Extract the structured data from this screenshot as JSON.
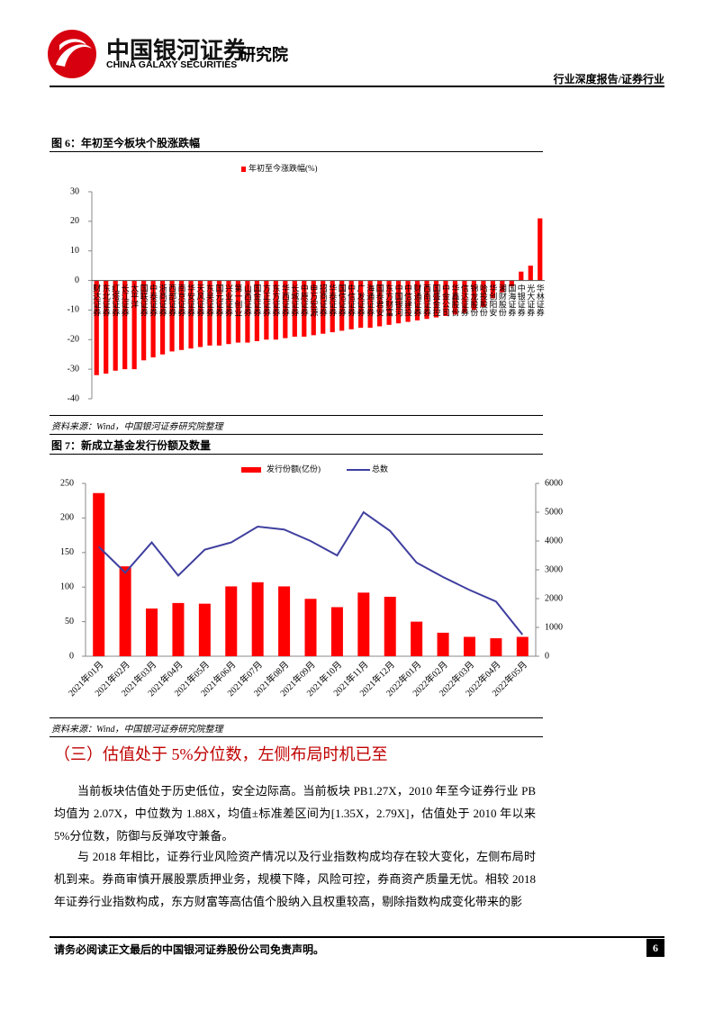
{
  "header": {
    "company_cn": "中国银河证券",
    "company_en": "CHINA GALAXY SECURITIES",
    "institute": "研究院",
    "report_type": "行业深度报告/证券行业"
  },
  "chart_data": [
    {
      "type": "bar",
      "title": "图 6：年初至今板块个股涨跌幅",
      "source": "资料来源：Wind，中国银河证券研究院整理",
      "categories": [
        "财达证券",
        "东北证券",
        "红塔证券",
        "长江证券",
        "太平洋",
        "国联证券",
        "中泰证券",
        "浙商证券",
        "西部证券",
        "南京证券",
        "华安证券",
        "天风证券",
        "东吴证券",
        "国元证券",
        "兴业证券",
        "第一创业",
        "山西证券",
        "国金证券",
        "方正证券",
        "东方证券",
        "华西证券",
        "长城证券",
        "中原证券",
        "申万宏源",
        "招商证券",
        "华泰证券",
        "国信证券",
        "中信证券",
        "广发证券",
        "海通证券",
        "国泰君安",
        "东方财富",
        "中国银河",
        "中信建投",
        "财通证券",
        "西南证券",
        "国盛金控",
        "中金公司",
        "华鑫股份",
        "信达证券",
        "锦龙股份",
        "哈投股份",
        "华创阳安",
        "湘财股份",
        "国海证券",
        "中银证券",
        "光大证券",
        "华林证券"
      ],
      "series": [
        {
          "name": "年初至今涨跌幅(%)",
          "color": "#ff0000",
          "values": [
            -32,
            -31.5,
            -30.5,
            -30,
            -30,
            -27,
            -26,
            -25,
            -24,
            -23.5,
            -23,
            -22.5,
            -22,
            -22,
            -21.5,
            -21,
            -21,
            -20.5,
            -20,
            -20,
            -19.5,
            -19,
            -19,
            -18.5,
            -18,
            -17.5,
            -17,
            -16.5,
            -16,
            -16,
            -15.5,
            -15,
            -14.5,
            -14,
            -13.5,
            -13,
            -12.5,
            -12,
            -11.5,
            -11,
            -10,
            -9,
            -6,
            -4,
            -2,
            3,
            5,
            21
          ]
        }
      ],
      "ylim": [
        -40,
        30
      ],
      "yticks": [
        -40,
        -30,
        -20,
        -10,
        0,
        10,
        20,
        30
      ],
      "legend": "top"
    },
    {
      "type": "combo",
      "title": "图 7：新成立基金发行份额及数量",
      "source": "资料来源：Wind，中国银河证券研究院整理",
      "categories": [
        "2021年01月",
        "2021年02月",
        "2021年03月",
        "2021年04月",
        "2021年05月",
        "2021年06月",
        "2021年07月",
        "2021年08月",
        "2021年09月",
        "2021年10月",
        "2021年11月",
        "2021年12月",
        "2022年01月",
        "2022年02月",
        "2022年03月",
        "2022年04月",
        "2022年05月"
      ],
      "series": [
        {
          "name": "发行份额(亿份)",
          "type": "bar",
          "color": "#ff0000",
          "values": [
            236,
            130,
            69,
            77,
            76,
            101,
            107,
            101,
            83,
            71,
            92,
            86,
            50,
            34,
            28,
            26,
            28
          ]
        },
        {
          "name": "总数",
          "type": "line",
          "axis": "y2",
          "color": "#3f3f9f",
          "values": [
            3800,
            2900,
            3950,
            2800,
            3700,
            3950,
            4500,
            4400,
            4000,
            3500,
            5000,
            4350,
            3250,
            2750,
            2300,
            1900,
            750
          ]
        }
      ],
      "ylim": [
        0,
        250
      ],
      "yticks": [
        0,
        50,
        100,
        150,
        200,
        250
      ],
      "y2lim": [
        0,
        6000
      ],
      "y2ticks": [
        0,
        1000,
        2000,
        3000,
        4000,
        5000,
        6000
      ],
      "legend": "top"
    }
  ],
  "section": {
    "heading": "（三）估值处于 5%分位数，左侧布局时机已至",
    "paragraphs": [
      "当前板块估值处于历史低位，安全边际高。当前板块 PB1.27X，2010 年至今证券行业 PB 均值为 2.07X，中位数为 1.88X，均值±标准差区间为[1.35X，2.79X]，估值处于 2010 年以来 5%分位数，防御与反弹攻守兼备。",
      "与 2018 年相比，证券行业风险资产情况以及行业指数构成均存在较大变化，左侧布局时机到来。券商审慎开展股票质押业务，规模下降，风险可控，券商资产质量无忧。相较 2018 年证券行业指数构成，东方财富等高估值个股纳入且权重较高，剔除指数构成变化带来的影"
    ]
  },
  "footer": {
    "disclaimer": "请务必阅读正文最后的中国银河证券股份公司免责声明。",
    "page": "6"
  }
}
